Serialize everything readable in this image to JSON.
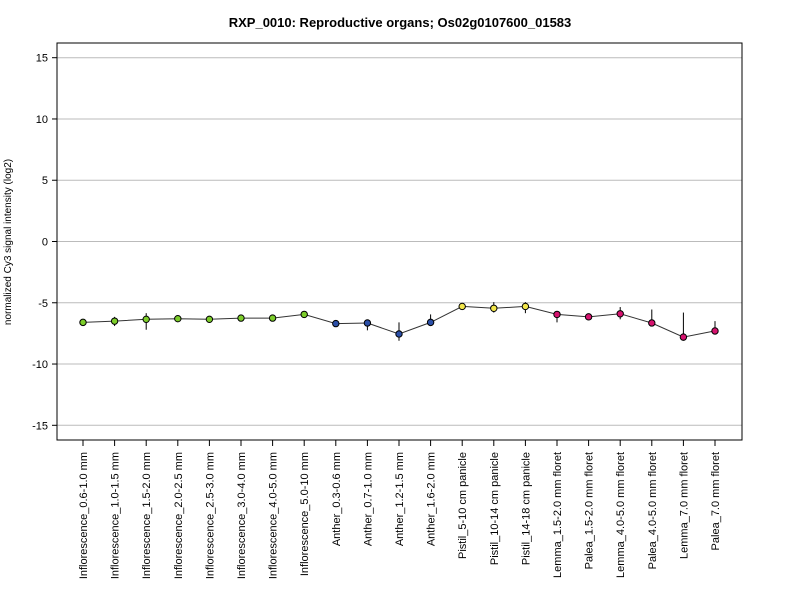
{
  "chart_data": {
    "type": "line",
    "title": "RXP_0010: Reproductive organs; Os02g0107600_01583",
    "ylabel": "normalized Cy3 signal intensity (log2)",
    "xlabel": "",
    "ylim": [
      -16.2,
      16.2
    ],
    "yticks": [
      -15,
      -10,
      -5,
      0,
      5,
      10,
      15
    ],
    "grid": true,
    "categories": [
      "Inflorescence_0.6-1.0 mm",
      "Inflorescence_1.0-1.5 mm",
      "Inflorescence_1.5-2.0 mm",
      "Inflorescence_2.0-2.5 mm",
      "Inflorescence_2.5-3.0 mm",
      "Inflorescence_3.0-4.0 mm",
      "Inflorescence_4.0-5.0 mm",
      "Inflorescence_5.0-10 mm",
      "Anther_0.3-0.6 mm",
      "Anther_0.7-1.0 mm",
      "Anther_1.2-1.5 mm",
      "Anther_1.6-2.0 mm",
      "Pistil_5-10 cm panicle",
      "Pistil_10-14 cm panicle",
      "Pistil_14-18 cm panicle",
      "Lemma_1.5-2.0 mm floret",
      "Palea_1.5-2.0 mm floret",
      "Lemma_4.0-5.0 mm floret",
      "Palea_4.0-5.0 mm floret",
      "Lemma_7.0 mm floret",
      "Palea_7.0 mm floret"
    ],
    "values": [
      -6.6,
      -6.5,
      -6.35,
      -6.3,
      -6.35,
      -6.25,
      -6.25,
      -5.95,
      -6.7,
      -6.65,
      -7.55,
      -6.6,
      -5.3,
      -5.45,
      -5.3,
      -5.95,
      -6.15,
      -5.9,
      -6.65,
      -7.8,
      -7.3
    ],
    "error_low": [
      -6.7,
      -6.9,
      -7.2,
      -6.4,
      -6.45,
      -6.5,
      -6.35,
      -6.05,
      -6.85,
      -7.25,
      -8.1,
      -6.9,
      -5.5,
      -5.8,
      -5.85,
      -6.6,
      -6.4,
      -6.35,
      -6.75,
      -8.1,
      -7.6
    ],
    "error_high": [
      -6.5,
      -6.15,
      -5.85,
      -6.2,
      -6.25,
      -6.0,
      -6.15,
      -5.85,
      -6.55,
      -6.4,
      -6.6,
      -5.95,
      -5.1,
      -4.95,
      -4.95,
      -5.7,
      -5.95,
      -5.35,
      -5.55,
      -5.8,
      -6.5
    ],
    "point_colors": [
      "#7CCD2A",
      "#7CCD2A",
      "#7CCD2A",
      "#7CCD2A",
      "#7CCD2A",
      "#7CCD2A",
      "#7CCD2A",
      "#7CCD2A",
      "#2B4FA8",
      "#2B4FA8",
      "#2B4FA8",
      "#2B4FA8",
      "#F2E64A",
      "#F2E64A",
      "#F2E64A",
      "#D6136F",
      "#D6136F",
      "#D6136F",
      "#D6136F",
      "#D6136F",
      "#D6136F"
    ],
    "line_color": "#333333",
    "grid_color": "#BBBBBB"
  }
}
